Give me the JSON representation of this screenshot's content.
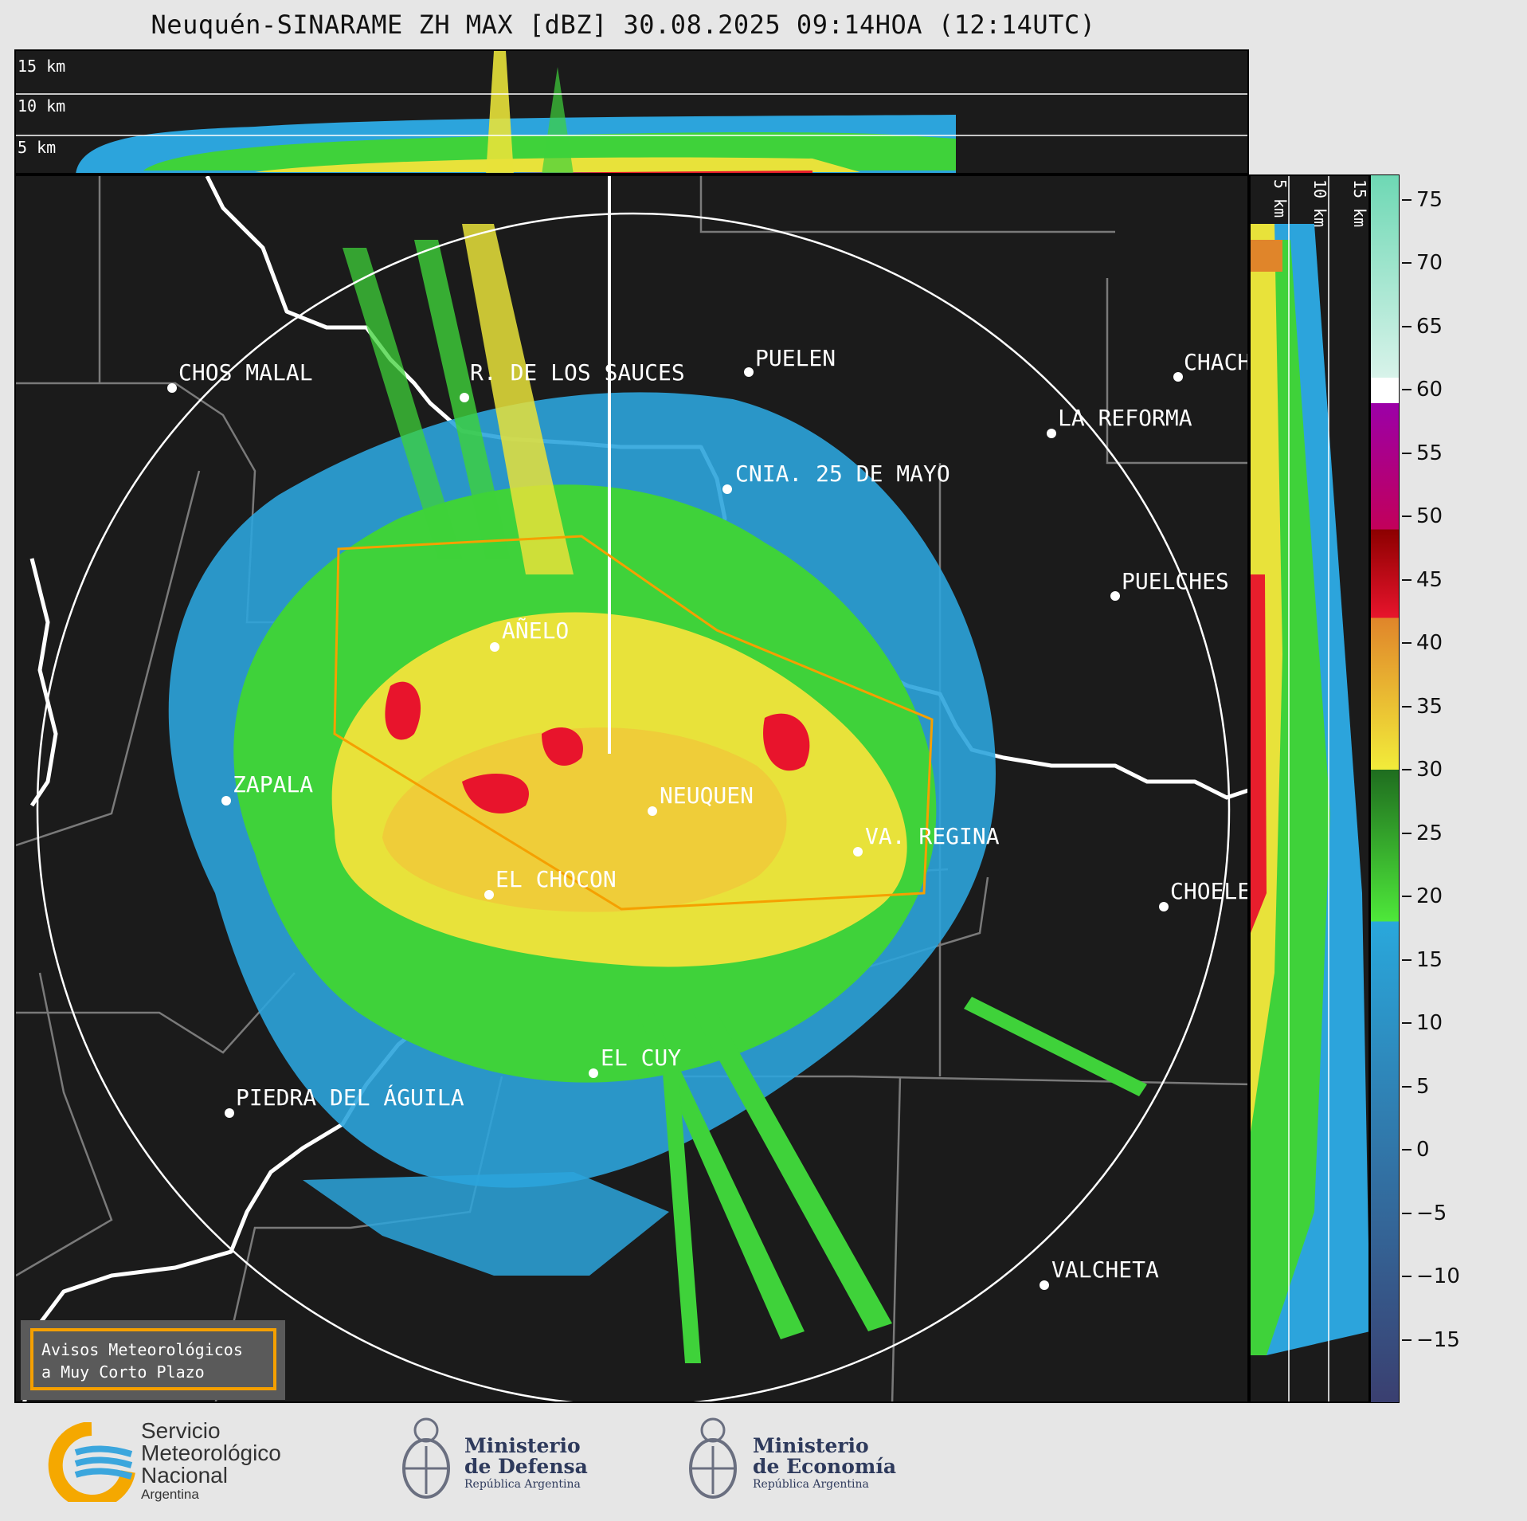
{
  "title": "Neuquén-SINARAME ZH MAX [dBZ] 30.08.2025 09:14HOA (12:14UTC)",
  "top_panel": {
    "height_labels": [
      "15 km",
      "10 km",
      "5 km"
    ]
  },
  "side_panel": {
    "height_labels": [
      "5 km",
      "10 km",
      "15 km"
    ]
  },
  "colorbar": {
    "tick_labels": [
      "75",
      "70",
      "65",
      "60",
      "55",
      "50",
      "45",
      "40",
      "35",
      "30",
      "25",
      "20",
      "15",
      "10",
      "5",
      "0",
      "−5",
      "−10",
      "−15"
    ],
    "range": [
      -20,
      77
    ],
    "bands": [
      {
        "from": -20,
        "to": 18,
        "color_low": "#3a3f70",
        "color_high": "#29a8dc"
      },
      {
        "from": 18,
        "to": 30,
        "color_low": "#4ee83a",
        "color_high": "#1f6d1f"
      },
      {
        "from": 30,
        "to": 42,
        "color_low": "#f2ec3a",
        "color_high": "#e0852a"
      },
      {
        "from": 42,
        "to": 49,
        "color_low": "#e8142c",
        "color_high": "#8c0000"
      },
      {
        "from": 49,
        "to": 59,
        "color_low": "#c2005a",
        "color_high": "#9b00a8"
      },
      {
        "from": 59,
        "to": 61,
        "color_low": "#ffffff",
        "color_high": "#ffffff"
      },
      {
        "from": 61,
        "to": 77,
        "color_low": "#d8f3ea",
        "color_high": "#6ed8b4"
      }
    ]
  },
  "map": {
    "cities": [
      {
        "name": "CHOS MALAL"
      },
      {
        "name": "R. DE LOS SAUCES"
      },
      {
        "name": "PUELEN"
      },
      {
        "name": "CHACH"
      },
      {
        "name": "LA REFORMA"
      },
      {
        "name": "CNIA. 25 DE MAYO"
      },
      {
        "name": "PUELCHES"
      },
      {
        "name": "AÑELO"
      },
      {
        "name": "ZAPALA"
      },
      {
        "name": "NEUQUEN"
      },
      {
        "name": "VA. REGINA"
      },
      {
        "name": "EL CHOCON"
      },
      {
        "name": "CHOELE"
      },
      {
        "name": "EL CUY"
      },
      {
        "name": "PIEDRA DEL ÁGUILA"
      },
      {
        "name": "VALCHETA"
      }
    ],
    "warning_box": {
      "line1": "Avisos Meteorológicos",
      "line2": "a Muy Corto Plazo",
      "color": "#f5a000"
    }
  },
  "logos": {
    "smn": {
      "line1": "Servicio",
      "line2": "Meteorológico",
      "line3": "Nacional",
      "line4": "Argentina"
    },
    "defensa": {
      "line1": "Ministerio",
      "line2": "de Defensa",
      "line3": "República Argentina"
    },
    "economia": {
      "line1": "Ministerio",
      "line2": "de Economía",
      "line3": "República Argentina"
    }
  }
}
